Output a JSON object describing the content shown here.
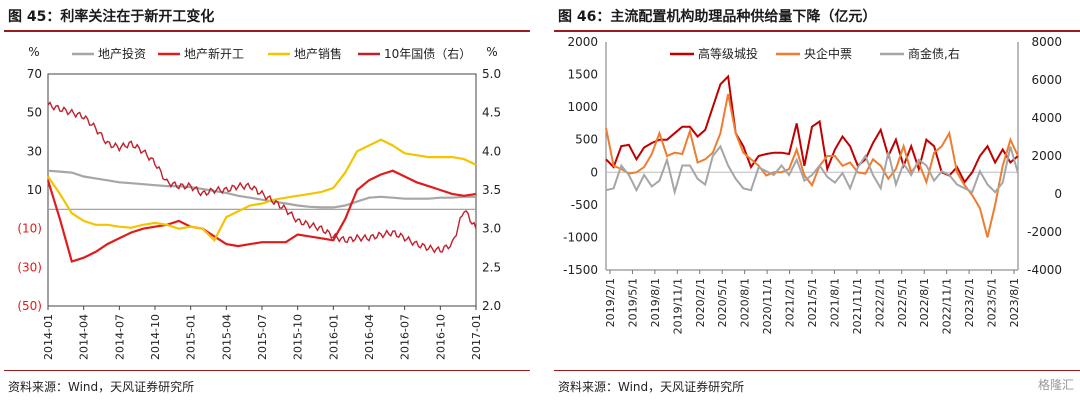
{
  "figures": [
    {
      "title": "图 45：利率关注在于新开工变化",
      "source": "资料来源：Wind，天风证券研究所"
    },
    {
      "title": "图 46：主流配置机构助理品种供给量下降（亿元）",
      "source": "资料来源：Wind，天风证券研究所"
    }
  ],
  "watermark": "格隆汇",
  "chart_data": [
    {
      "type": "line",
      "left_unit": "%",
      "right_unit": "%",
      "ylim": [
        -50,
        70
      ],
      "y2lim": [
        2.0,
        5.0
      ],
      "y_ticks": [
        "70",
        "50",
        "30",
        "10",
        "(10)",
        "(30)",
        "(50)"
      ],
      "y_tick_values": [
        70,
        50,
        30,
        10,
        -10,
        -30,
        -50
      ],
      "y2_ticks": [
        "5.0",
        "4.5",
        "4.0",
        "3.5",
        "3.0",
        "2.5",
        "2.0"
      ],
      "y2_tick_values": [
        5.0,
        4.5,
        4.0,
        3.5,
        3.0,
        2.5,
        2.0
      ],
      "x_ticks": [
        "2014-01",
        "2014-04",
        "2014-07",
        "2014-10",
        "2015-01",
        "2015-04",
        "2015-07",
        "2015-10",
        "2016-01",
        "2016-04",
        "2016-07",
        "2016-10",
        "2017-01"
      ],
      "x": [
        "2014-01",
        "2014-02",
        "2014-03",
        "2014-04",
        "2014-05",
        "2014-06",
        "2014-07",
        "2014-08",
        "2014-09",
        "2014-10",
        "2014-11",
        "2014-12",
        "2015-01",
        "2015-02",
        "2015-03",
        "2015-04",
        "2015-05",
        "2015-06",
        "2015-07",
        "2015-08",
        "2015-09",
        "2015-10",
        "2015-11",
        "2015-12",
        "2016-01",
        "2016-02",
        "2016-03",
        "2016-04",
        "2016-05",
        "2016-06",
        "2016-07",
        "2016-08",
        "2016-09",
        "2016-10",
        "2016-11",
        "2016-12",
        "2017-01"
      ],
      "series": [
        {
          "name": "地产投资",
          "axis": "left",
          "color": "#a6a6a6",
          "values": [
            20,
            19.5,
            19,
            17,
            16,
            15,
            14,
            13.5,
            13,
            12.5,
            12,
            12,
            11.5,
            10.5,
            9.5,
            8.5,
            7,
            6,
            5,
            4,
            3,
            2,
            1.3,
            1,
            1,
            2,
            4,
            6,
            6.5,
            6,
            5.5,
            5.5,
            5.5,
            6,
            6,
            6.5,
            6.5
          ]
        },
        {
          "name": "地产新开工",
          "axis": "left",
          "color": "#e11b1b",
          "values": [
            15,
            -5,
            -27,
            -25,
            -22,
            -18,
            -15,
            -12,
            -10,
            -9,
            -8,
            -6,
            -9,
            -10,
            -14,
            -18,
            -19,
            -18,
            -17,
            -17,
            -17,
            -13,
            -14,
            -15,
            -16,
            -5,
            10,
            15,
            18,
            20,
            17,
            14,
            12,
            10,
            8,
            7,
            8
          ]
        },
        {
          "name": "地产销售",
          "axis": "left",
          "color": "#f5c400",
          "values": [
            17,
            8,
            -2,
            -6,
            -8,
            -8,
            -9,
            -9.5,
            -8,
            -7,
            -8,
            -10,
            -9,
            -10,
            -16,
            -4,
            -1,
            2,
            3,
            5,
            6,
            7,
            8,
            9,
            11,
            19,
            30,
            33,
            36,
            33,
            29,
            28,
            27,
            27,
            27,
            26,
            23
          ]
        },
        {
          "name": "10年国债（右）",
          "axis": "right",
          "color": "#c0202d",
          "values": [
            4.6,
            4.55,
            4.5,
            4.45,
            4.3,
            4.1,
            4.05,
            4.1,
            4.0,
            3.85,
            3.6,
            3.55,
            3.55,
            3.45,
            3.5,
            3.5,
            3.55,
            3.55,
            3.45,
            3.35,
            3.25,
            3.1,
            3.05,
            3.0,
            2.9,
            2.85,
            2.88,
            2.88,
            2.92,
            2.95,
            2.88,
            2.8,
            2.75,
            2.72,
            2.8,
            3.25,
            3.0
          ]
        }
      ]
    },
    {
      "type": "line",
      "ylim": [
        -1500,
        2000
      ],
      "y2lim": [
        -4000,
        8000
      ],
      "y_ticks": [
        "2000",
        "1500",
        "1000",
        "500",
        "0",
        "-500",
        "-1000",
        "-1500"
      ],
      "y_tick_values": [
        2000,
        1500,
        1000,
        500,
        0,
        -500,
        -1000,
        -1500
      ],
      "y2_ticks": [
        "8000",
        "6000",
        "4000",
        "2000",
        "0",
        "-2000",
        "-4000"
      ],
      "y2_tick_values": [
        8000,
        6000,
        4000,
        2000,
        0,
        -2000,
        -4000
      ],
      "x_ticks": [
        "2019/2/1",
        "2019/5/1",
        "2019/8/1",
        "2019/11/1",
        "2020/2/1",
        "2020/5/1",
        "2020/8/1",
        "2020/11/1",
        "2021/2/1",
        "2021/5/1",
        "2021/8/1",
        "2021/11/1",
        "2022/2/1",
        "2022/5/1",
        "2022/8/1",
        "2022/11/1",
        "2023/2/1",
        "2023/5/1",
        "2023/8/1"
      ],
      "x": [
        "2019/2",
        "2019/3",
        "2019/4",
        "2019/5",
        "2019/6",
        "2019/7",
        "2019/8",
        "2019/9",
        "2019/10",
        "2019/11",
        "2019/12",
        "2020/1",
        "2020/2",
        "2020/3",
        "2020/4",
        "2020/5",
        "2020/6",
        "2020/7",
        "2020/8",
        "2020/9",
        "2020/10",
        "2020/11",
        "2020/12",
        "2021/1",
        "2021/2",
        "2021/3",
        "2021/4",
        "2021/5",
        "2021/6",
        "2021/7",
        "2021/8",
        "2021/9",
        "2021/10",
        "2021/11",
        "2021/12",
        "2022/1",
        "2022/2",
        "2022/3",
        "2022/4",
        "2022/5",
        "2022/6",
        "2022/7",
        "2022/8",
        "2022/9",
        "2022/10",
        "2022/11",
        "2022/12",
        "2023/1",
        "2023/2",
        "2023/3",
        "2023/4",
        "2023/5",
        "2023/6",
        "2023/7",
        "2023/8"
      ],
      "series": [
        {
          "name": "高等级城投",
          "axis": "left",
          "color": "#c00000",
          "values": [
            200,
            80,
            400,
            420,
            200,
            380,
            450,
            500,
            500,
            600,
            700,
            700,
            550,
            650,
            1000,
            1350,
            1470,
            600,
            400,
            80,
            250,
            280,
            300,
            300,
            280,
            750,
            100,
            700,
            780,
            50,
            350,
            550,
            400,
            100,
            200,
            450,
            650,
            250,
            500,
            100,
            400,
            50,
            500,
            400,
            0,
            -50,
            80,
            -150,
            0,
            250,
            400,
            150,
            350,
            150,
            250
          ]
        },
        {
          "name": "央企中票",
          "axis": "left",
          "color": "#ed7d31",
          "values": [
            680,
            100,
            50,
            -20,
            0,
            80,
            280,
            600,
            250,
            300,
            280,
            630,
            150,
            200,
            300,
            600,
            1200,
            600,
            300,
            200,
            100,
            -50,
            0,
            0,
            50,
            350,
            -50,
            -200,
            100,
            250,
            250,
            100,
            150,
            0,
            -20,
            200,
            100,
            -100,
            50,
            400,
            0,
            150,
            -150,
            300,
            400,
            600,
            0,
            -200,
            -350,
            -550,
            -1000,
            -500,
            100,
            500,
            250
          ]
        },
        {
          "name": "商金债,右",
          "axis": "right",
          "color": "#a6a6a6",
          "values": [
            200,
            300,
            1500,
            1000,
            200,
            1000,
            400,
            700,
            1800,
            100,
            1500,
            1500,
            800,
            500,
            2000,
            2500,
            1500,
            800,
            300,
            200,
            1400,
            1200,
            1000,
            1500,
            1000,
            1800,
            700,
            1000,
            1500,
            900,
            600,
            1100,
            300,
            1400,
            2000,
            1000,
            300,
            2200,
            500,
            1600,
            1000,
            1800,
            1500,
            700,
            1200,
            1000,
            500,
            300,
            100,
            1200,
            500,
            100,
            600,
            2500,
            1100
          ]
        }
      ]
    }
  ]
}
